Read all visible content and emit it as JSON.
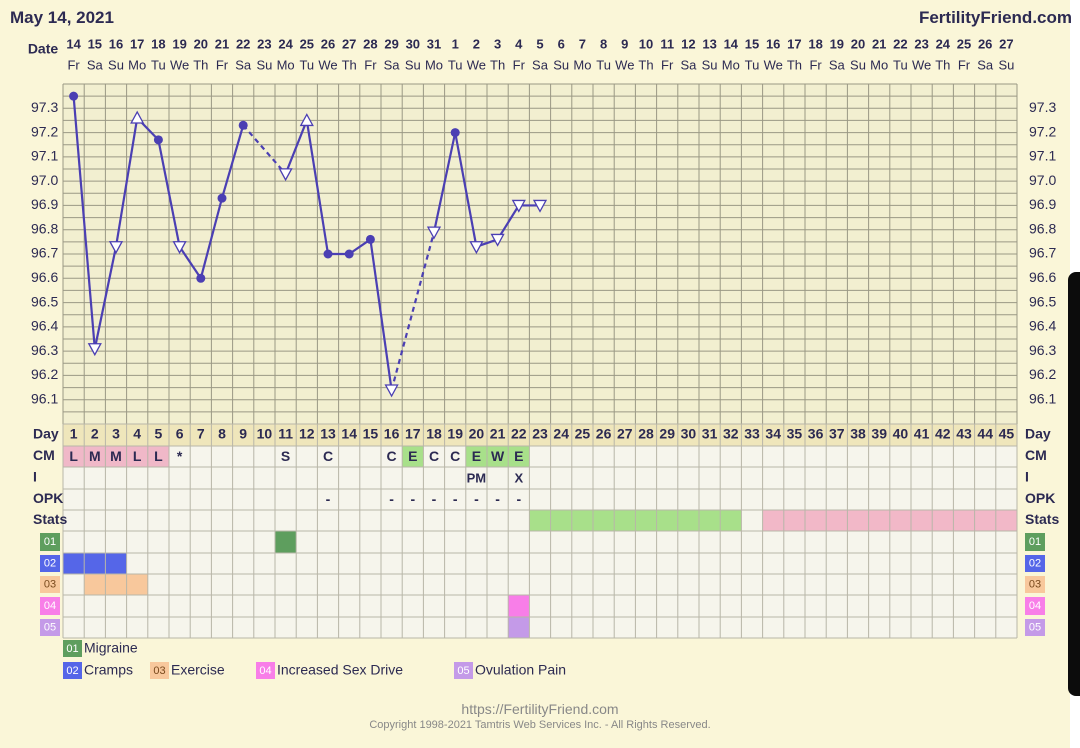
{
  "header": {
    "date": "May 14, 2021",
    "brand": "FertilityFriend.com"
  },
  "row_labels": {
    "date": "Date",
    "day": "Day",
    "cm": "CM",
    "i": "I",
    "opk": "OPK",
    "stats": "Stats"
  },
  "dates": [
    "14",
    "15",
    "16",
    "17",
    "18",
    "19",
    "20",
    "21",
    "22",
    "23",
    "24",
    "25",
    "26",
    "27",
    "28",
    "29",
    "30",
    "31",
    "1",
    "2",
    "3",
    "4",
    "5",
    "6",
    "7",
    "8",
    "9",
    "10",
    "11",
    "12",
    "13",
    "14",
    "15",
    "16",
    "17",
    "18",
    "19",
    "20",
    "21",
    "22",
    "23",
    "24",
    "25",
    "26",
    "27"
  ],
  "weekdays": [
    "Fr",
    "Sa",
    "Su",
    "Mo",
    "Tu",
    "We",
    "Th",
    "Fr",
    "Sa",
    "Su",
    "Mo",
    "Tu",
    "We",
    "Th",
    "Fr",
    "Sa",
    "Su",
    "Mo",
    "Tu",
    "We",
    "Th",
    "Fr",
    "Sa",
    "Su",
    "Mo",
    "Tu",
    "We",
    "Th",
    "Fr",
    "Sa",
    "Su",
    "Mo",
    "Tu",
    "We",
    "Th",
    "Fr",
    "Sa",
    "Su",
    "Mo",
    "Tu",
    "We",
    "Th",
    "Fr",
    "Sa",
    "Su"
  ],
  "chart_data": {
    "type": "line",
    "xlabel": "Day",
    "ylabel": "",
    "ylim": [
      96.0,
      97.4
    ],
    "y_ticks": [
      "97.3",
      "97.2",
      "97.1",
      "97.0",
      "96.9",
      "96.8",
      "96.7",
      "96.6",
      "96.5",
      "96.4",
      "96.3",
      "96.2",
      "96.1"
    ],
    "cycle_days": [
      1,
      2,
      3,
      4,
      5,
      6,
      7,
      8,
      9,
      10,
      11,
      12,
      13,
      14,
      15,
      16,
      17,
      18,
      19,
      20,
      21,
      22,
      23,
      24,
      25,
      26,
      27,
      28,
      29,
      30,
      31,
      32,
      33,
      34,
      35,
      36,
      37,
      38,
      39,
      40,
      41,
      42,
      43,
      44,
      45
    ],
    "series": [
      {
        "points": [
          {
            "day": 1,
            "temp": 97.35,
            "marker": "dot"
          },
          {
            "day": 2,
            "temp": 96.31,
            "marker": "open-triangle"
          },
          {
            "day": 3,
            "temp": 96.73,
            "marker": "open-triangle"
          },
          {
            "day": 4,
            "temp": 97.26,
            "marker": "open-triangle-up"
          },
          {
            "day": 5,
            "temp": 97.17,
            "marker": "dot"
          },
          {
            "day": 6,
            "temp": 96.73,
            "marker": "open-triangle"
          },
          {
            "day": 7,
            "temp": 96.6,
            "marker": "dot"
          },
          {
            "day": 8,
            "temp": 96.93,
            "marker": "dot"
          },
          {
            "day": 9,
            "temp": 97.23,
            "marker": "dot"
          },
          {
            "day": 11,
            "temp": 97.03,
            "marker": "open-triangle"
          },
          {
            "day": 12,
            "temp": 97.25,
            "marker": "open-triangle-up"
          },
          {
            "day": 13,
            "temp": 96.7,
            "marker": "dot"
          },
          {
            "day": 14,
            "temp": 96.7,
            "marker": "dot"
          },
          {
            "day": 15,
            "temp": 96.76,
            "marker": "dot"
          },
          {
            "day": 16,
            "temp": 96.14,
            "marker": "open-triangle"
          },
          {
            "day": 18,
            "temp": 96.79,
            "marker": "open-triangle"
          },
          {
            "day": 19,
            "temp": 97.2,
            "marker": "dot"
          },
          {
            "day": 20,
            "temp": 96.73,
            "marker": "open-triangle"
          },
          {
            "day": 21,
            "temp": 96.76,
            "marker": "open-triangle"
          },
          {
            "day": 22,
            "temp": 96.9,
            "marker": "open-triangle"
          },
          {
            "day": 23,
            "temp": 96.9,
            "marker": "open-triangle"
          }
        ],
        "segments": [
          {
            "from": 1,
            "to": 2,
            "style": "solid"
          },
          {
            "from": 2,
            "to": 3,
            "style": "solid"
          },
          {
            "from": 3,
            "to": 4,
            "style": "solid"
          },
          {
            "from": 4,
            "to": 5,
            "style": "solid"
          },
          {
            "from": 5,
            "to": 6,
            "style": "solid"
          },
          {
            "from": 6,
            "to": 7,
            "style": "solid"
          },
          {
            "from": 7,
            "to": 8,
            "style": "solid"
          },
          {
            "from": 8,
            "to": 9,
            "style": "solid"
          },
          {
            "from": 9,
            "to": 11,
            "style": "dashed"
          },
          {
            "from": 11,
            "to": 12,
            "style": "solid"
          },
          {
            "from": 12,
            "to": 13,
            "style": "solid"
          },
          {
            "from": 13,
            "to": 14,
            "style": "solid"
          },
          {
            "from": 14,
            "to": 15,
            "style": "solid"
          },
          {
            "from": 15,
            "to": 16,
            "style": "solid"
          },
          {
            "from": 16,
            "to": 18,
            "style": "dashed"
          },
          {
            "from": 18,
            "to": 19,
            "style": "solid"
          },
          {
            "from": 19,
            "to": 20,
            "style": "solid"
          },
          {
            "from": 20,
            "to": 21,
            "style": "solid"
          },
          {
            "from": 21,
            "to": 22,
            "style": "solid"
          },
          {
            "from": 22,
            "to": 23,
            "style": "solid"
          }
        ]
      }
    ],
    "cm": [
      {
        "day": 1,
        "text": "L",
        "bg": "#f0b8c8"
      },
      {
        "day": 2,
        "text": "M",
        "bg": "#f0b8c8"
      },
      {
        "day": 3,
        "text": "M",
        "bg": "#f0b8c8"
      },
      {
        "day": 4,
        "text": "L",
        "bg": "#f0b8c8"
      },
      {
        "day": 5,
        "text": "L",
        "bg": "#f0b8c8"
      },
      {
        "day": 6,
        "text": "*",
        "bg": ""
      },
      {
        "day": 11,
        "text": "S",
        "bg": ""
      },
      {
        "day": 13,
        "text": "C",
        "bg": ""
      },
      {
        "day": 16,
        "text": "C",
        "bg": ""
      },
      {
        "day": 17,
        "text": "E",
        "bg": "#a8e08a"
      },
      {
        "day": 18,
        "text": "C",
        "bg": ""
      },
      {
        "day": 19,
        "text": "C",
        "bg": ""
      },
      {
        "day": 20,
        "text": "E",
        "bg": "#a8e08a"
      },
      {
        "day": 21,
        "text": "W",
        "bg": "#a8e08a"
      },
      {
        "day": 22,
        "text": "E",
        "bg": "#a8e08a"
      }
    ],
    "intercourse": [
      {
        "day": 20,
        "text": "PM"
      },
      {
        "day": 22,
        "text": "X"
      }
    ],
    "opk": [
      {
        "day": 13,
        "text": "-"
      },
      {
        "day": 16,
        "text": "-"
      },
      {
        "day": 17,
        "text": "-"
      },
      {
        "day": 18,
        "text": "-"
      },
      {
        "day": 19,
        "text": "-"
      },
      {
        "day": 20,
        "text": "-"
      },
      {
        "day": 21,
        "text": "-"
      },
      {
        "day": 22,
        "text": "-"
      }
    ],
    "stats": [
      {
        "from": 23,
        "to": 32,
        "color": "#a8e08a"
      },
      {
        "from": 34,
        "to": 45,
        "color": "#f2b8c8"
      }
    ],
    "symptoms": [
      {
        "code": "01",
        "name": "Migraine",
        "color": "#5e9e5e",
        "days": [
          11
        ]
      },
      {
        "code": "02",
        "name": "Cramps",
        "color": "#5566e8",
        "days": [
          1,
          2,
          3
        ]
      },
      {
        "code": "03",
        "name": "Exercise",
        "color": "#f8c89c",
        "days": [
          2,
          3,
          4
        ]
      },
      {
        "code": "04",
        "name": "Increased Sex Drive",
        "color": "#f87ee8",
        "days": [
          22
        ]
      },
      {
        "code": "05",
        "name": "Ovulation Pain",
        "color": "#c49ae8",
        "days": [
          22
        ]
      }
    ]
  },
  "footer": {
    "url": "https://FertilityFriend.com",
    "copyright": "Copyright 1998-2021 Tamtris Web Services Inc. - All Rights Reserved."
  }
}
